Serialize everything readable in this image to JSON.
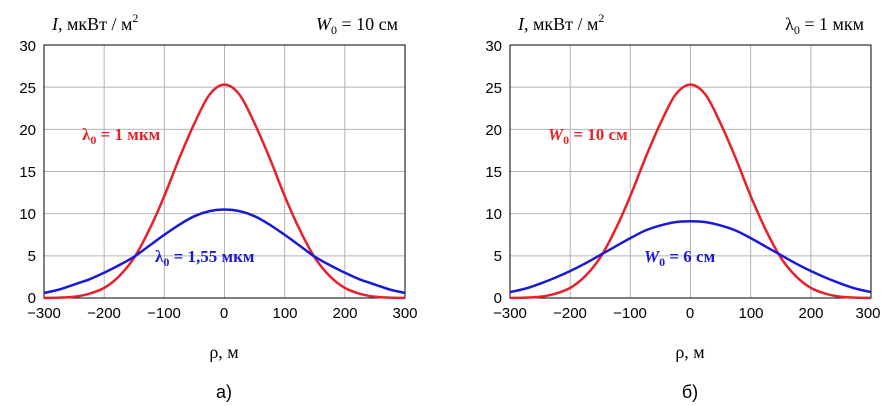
{
  "chart_data": [
    {
      "type": "line",
      "panel_label": "а)",
      "ylabel": {
        "var": "I",
        "rest": ", мкВт / м",
        "sup": "2"
      },
      "xlabel": "ρ, м",
      "param": {
        "sym": "W",
        "sub": "0",
        "rest": " = 10 см"
      },
      "xlim": [
        -300,
        300
      ],
      "ylim": [
        0,
        30
      ],
      "xticks": [
        "−300",
        "−200",
        "−100",
        "0",
        "100",
        "200",
        "300"
      ],
      "yticks": [
        "0",
        "5",
        "10",
        "15",
        "20",
        "25",
        "30"
      ],
      "grid": true,
      "series": [
        {
          "label": {
            "sym": "λ",
            "sub": "0",
            "rest": " = 1 мкм"
          },
          "color": "#e8202a",
          "x": [
            -300,
            -275,
            -250,
            -225,
            -200,
            -175,
            -150,
            -125,
            -100,
            -75,
            -50,
            -25,
            0,
            25,
            50,
            75,
            100,
            125,
            150,
            175,
            200,
            225,
            250,
            275,
            300
          ],
          "y": [
            0.0,
            0.05,
            0.15,
            0.5,
            1.2,
            2.6,
            4.8,
            8.1,
            12.1,
            16.6,
            20.7,
            24.1,
            25.3,
            24.1,
            20.7,
            16.6,
            12.1,
            8.1,
            4.8,
            2.6,
            1.2,
            0.5,
            0.15,
            0.05,
            0.0
          ]
        },
        {
          "label": {
            "sym": "λ",
            "sub": "0",
            "rest": " = 1,55 мкм"
          },
          "color": "#1a1ad6",
          "x": [
            -300,
            -275,
            -250,
            -225,
            -200,
            -175,
            -150,
            -125,
            -100,
            -75,
            -50,
            -25,
            0,
            25,
            50,
            75,
            100,
            125,
            150,
            175,
            200,
            225,
            250,
            275,
            300
          ],
          "y": [
            0.6,
            1.0,
            1.6,
            2.2,
            3.0,
            3.9,
            4.9,
            6.2,
            7.5,
            8.7,
            9.7,
            10.3,
            10.5,
            10.3,
            9.7,
            8.7,
            7.5,
            6.2,
            4.9,
            3.9,
            3.0,
            2.2,
            1.6,
            1.0,
            0.6
          ]
        }
      ]
    },
    {
      "type": "line",
      "panel_label": "б)",
      "ylabel": {
        "var": "I",
        "rest": ", мкВт / м",
        "sup": "2"
      },
      "xlabel": "ρ, м",
      "param": {
        "sym": "λ",
        "sub": "0",
        "rest": " = 1 мкм"
      },
      "xlim": [
        -300,
        300
      ],
      "ylim": [
        0,
        30
      ],
      "xticks": [
        "−300",
        "−200",
        "−100",
        "0",
        "100",
        "200",
        "300"
      ],
      "yticks": [
        "0",
        "5",
        "10",
        "15",
        "20",
        "25",
        "30"
      ],
      "grid": true,
      "series": [
        {
          "label": {
            "sym": "W",
            "sub": "0",
            "rest": " = 10 см"
          },
          "color": "#e8202a",
          "x": [
            -300,
            -275,
            -250,
            -225,
            -200,
            -175,
            -150,
            -125,
            -100,
            -75,
            -50,
            -25,
            0,
            25,
            50,
            75,
            100,
            125,
            150,
            175,
            200,
            225,
            250,
            275,
            300
          ],
          "y": [
            0.0,
            0.05,
            0.15,
            0.5,
            1.2,
            2.6,
            4.8,
            8.1,
            12.1,
            16.6,
            20.7,
            24.1,
            25.3,
            24.1,
            20.7,
            16.6,
            12.1,
            8.1,
            4.8,
            2.6,
            1.2,
            0.5,
            0.15,
            0.05,
            0.0
          ]
        },
        {
          "label": {
            "sym": "W",
            "sub": "0",
            "rest": " = 6 см"
          },
          "color": "#1a1ad6",
          "x": [
            -300,
            -275,
            -250,
            -225,
            -200,
            -175,
            -150,
            -125,
            -100,
            -75,
            -50,
            -25,
            0,
            25,
            50,
            75,
            100,
            125,
            150,
            175,
            200,
            225,
            250,
            275,
            300
          ],
          "y": [
            0.7,
            1.1,
            1.7,
            2.4,
            3.2,
            4.1,
            5.1,
            6.1,
            7.1,
            8.0,
            8.6,
            9.0,
            9.1,
            9.0,
            8.6,
            8.0,
            7.1,
            6.1,
            5.1,
            4.1,
            3.2,
            2.4,
            1.7,
            1.1,
            0.7
          ]
        }
      ]
    }
  ]
}
